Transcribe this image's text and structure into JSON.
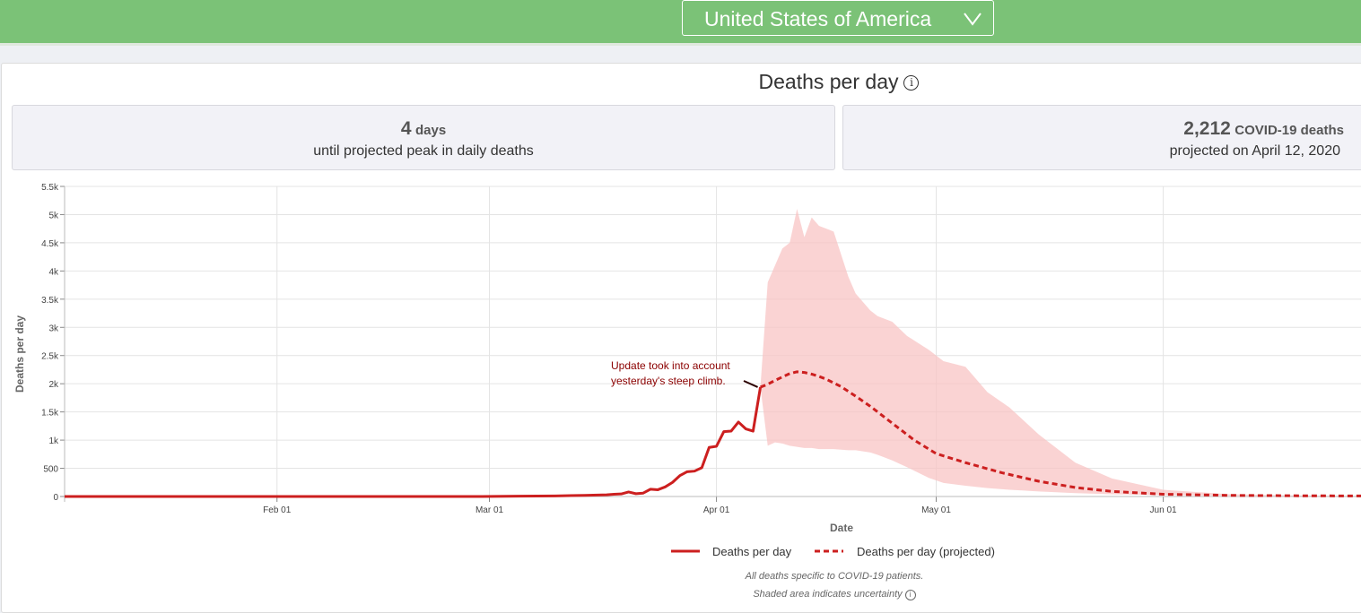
{
  "header": {
    "country": "United States of America",
    "dropdown_icon": "chevron-down-icon",
    "bar_color": "#7bc277"
  },
  "section": {
    "title": "Deaths per day",
    "info_icon": "info-icon"
  },
  "stats": {
    "peak_value": "4",
    "peak_unit": "days",
    "peak_caption": "until projected peak in daily deaths",
    "deaths_value": "2,212",
    "deaths_unit": "COVID-19 deaths",
    "deaths_caption": "projected on April 12, 2020"
  },
  "footnotes": {
    "line1": "All deaths specific to COVID-19 patients.",
    "line2": "Shaded area indicates uncertainty"
  },
  "chart_data": {
    "type": "line",
    "title": "Deaths per day",
    "xlabel": "Date",
    "ylabel": "Deaths per day",
    "ylim": [
      0,
      5500
    ],
    "yticks": [
      0,
      500,
      1000,
      1500,
      2000,
      2500,
      3000,
      3500,
      4000,
      4500,
      5000,
      5500
    ],
    "ytick_labels": [
      "0",
      "500",
      "1k",
      "1.5k",
      "2k",
      "2.5k",
      "3k",
      "3.5k",
      "4k",
      "4.5k",
      "5k",
      "5.5k"
    ],
    "xlim": [
      "2020-01-03",
      "2020-06-28"
    ],
    "xticks": [
      "2020-02-01",
      "2020-03-01",
      "2020-04-01",
      "2020-05-01",
      "2020-06-01"
    ],
    "xtick_labels": [
      "Feb 01",
      "Mar 01",
      "Apr 01",
      "May 01",
      "Jun 01"
    ],
    "grid": true,
    "legend_position": "bottom",
    "colors": {
      "line": "#cc1f1f",
      "band": "#f8c4c4"
    },
    "series": [
      {
        "name": "Deaths per day",
        "style": "solid",
        "x": [
          "2020-01-03",
          "2020-02-29",
          "2020-03-05",
          "2020-03-10",
          "2020-03-14",
          "2020-03-17",
          "2020-03-18",
          "2020-03-19",
          "2020-03-20",
          "2020-03-21",
          "2020-03-22",
          "2020-03-23",
          "2020-03-24",
          "2020-03-25",
          "2020-03-26",
          "2020-03-27",
          "2020-03-28",
          "2020-03-29",
          "2020-03-30",
          "2020-03-31",
          "2020-04-01",
          "2020-04-02",
          "2020-04-03",
          "2020-04-04",
          "2020-04-05",
          "2020-04-06",
          "2020-04-07"
        ],
        "y": [
          0,
          0,
          5,
          10,
          20,
          30,
          40,
          45,
          80,
          50,
          60,
          130,
          120,
          170,
          250,
          370,
          440,
          450,
          510,
          870,
          890,
          1150,
          1160,
          1320,
          1200,
          1160,
          1940
        ]
      },
      {
        "name": "Deaths per day (projected)",
        "style": "dashed",
        "x": [
          "2020-04-07",
          "2020-04-08",
          "2020-04-09",
          "2020-04-10",
          "2020-04-11",
          "2020-04-12",
          "2020-04-13",
          "2020-04-14",
          "2020-04-15",
          "2020-04-16",
          "2020-04-18",
          "2020-04-20",
          "2020-04-22",
          "2020-04-25",
          "2020-04-28",
          "2020-05-01",
          "2020-05-05",
          "2020-05-10",
          "2020-05-15",
          "2020-05-20",
          "2020-05-25",
          "2020-06-01",
          "2020-06-10",
          "2020-06-20",
          "2020-06-28"
        ],
        "y": [
          1940,
          1990,
          2060,
          2120,
          2180,
          2212,
          2200,
          2170,
          2130,
          2080,
          1950,
          1780,
          1600,
          1300,
          1000,
          760,
          600,
          420,
          270,
          160,
          90,
          40,
          20,
          12,
          10
        ]
      }
    ],
    "uncertainty_band": {
      "x": [
        "2020-04-07",
        "2020-04-08",
        "2020-04-09",
        "2020-04-10",
        "2020-04-11",
        "2020-04-12",
        "2020-04-13",
        "2020-04-14",
        "2020-04-15",
        "2020-04-16",
        "2020-04-17",
        "2020-04-18",
        "2020-04-19",
        "2020-04-20",
        "2020-04-22",
        "2020-04-23",
        "2020-04-25",
        "2020-04-27",
        "2020-04-30",
        "2020-05-02",
        "2020-05-05",
        "2020-05-08",
        "2020-05-11",
        "2020-05-15",
        "2020-05-20",
        "2020-05-25",
        "2020-06-01",
        "2020-06-10",
        "2020-06-20",
        "2020-06-28"
      ],
      "lower": [
        1940,
        900,
        960,
        940,
        900,
        880,
        860,
        860,
        840,
        840,
        840,
        830,
        820,
        820,
        780,
        740,
        640,
        520,
        330,
        240,
        190,
        150,
        120,
        90,
        60,
        40,
        25,
        15,
        10,
        10
      ],
      "upper": [
        1940,
        3800,
        4100,
        4400,
        4500,
        5100,
        4600,
        4950,
        4800,
        4750,
        4700,
        4300,
        3900,
        3600,
        3300,
        3200,
        3100,
        2850,
        2600,
        2400,
        2300,
        1850,
        1580,
        1100,
        600,
        320,
        120,
        40,
        15,
        10
      ]
    },
    "annotation": {
      "text_line1": "Update took into account",
      "text_line2": "yesterday's steep climb.",
      "x": "2020-04-07",
      "y": 1940,
      "color": "#8b0000"
    }
  }
}
